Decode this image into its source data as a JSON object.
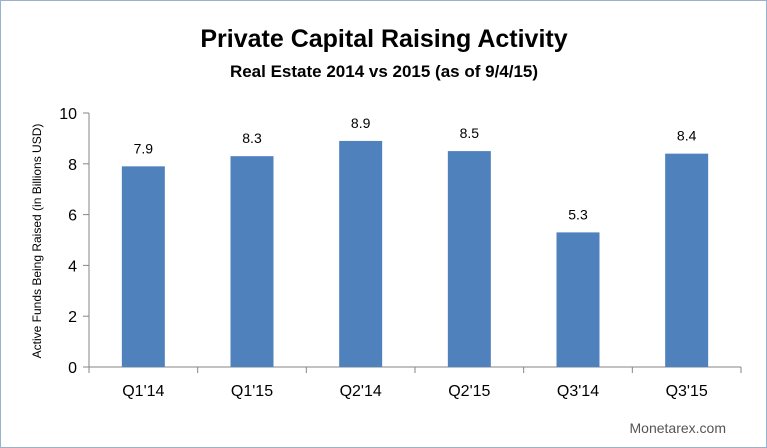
{
  "chart_data": {
    "type": "bar",
    "title": "Private Capital Raising Activity",
    "subtitle": "Real Estate 2014 vs 2015 (as of 9/4/15)",
    "xlabel": "",
    "ylabel": "Active Funds Being Raised (in Billions USD)",
    "categories": [
      "Q1'14",
      "Q1'15",
      "Q2'14",
      "Q2'15",
      "Q3'14",
      "Q3'15"
    ],
    "values": [
      7.9,
      8.3,
      8.9,
      8.5,
      5.3,
      8.4
    ],
    "data_labels": [
      "7.9",
      "8.3",
      "8.9",
      "8.5",
      "5.3",
      "8.4"
    ],
    "yticks": [
      0,
      2,
      4,
      6,
      8,
      10
    ],
    "ylim": [
      0,
      10
    ],
    "grid": false,
    "legend": "none",
    "bar_color": "#4f81bd"
  },
  "source_credit": "Monetarex.com"
}
